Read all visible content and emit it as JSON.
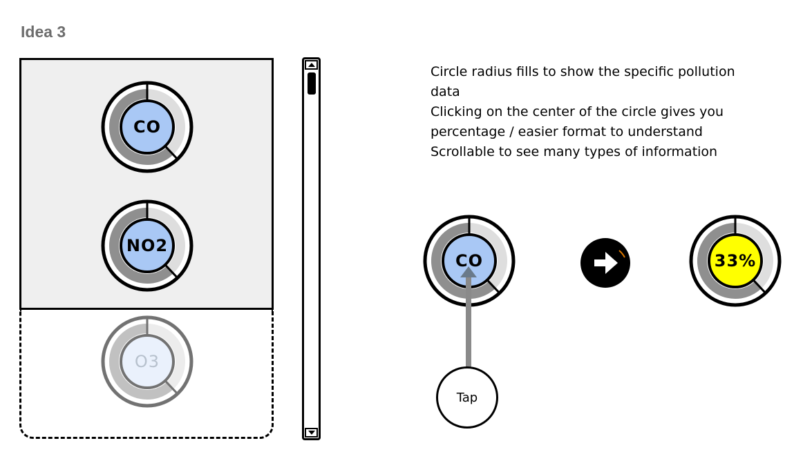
{
  "title": "Idea 3",
  "panel": {
    "gauges": [
      {
        "label": "CO",
        "fill_fraction": 0.62
      },
      {
        "label": "NO2",
        "fill_fraction": 0.62
      },
      {
        "label": "O3",
        "fill_fraction": 0.62
      }
    ]
  },
  "notes": {
    "line1": "Circle radius fills to show the specific pollution",
    "line2": "data",
    "line3": "Clicking on the center of the circle gives you",
    "line4": "percentage / easier format to understand",
    "line5": "Scrollable to see many types of information"
  },
  "demo": {
    "before_label": "CO",
    "after_label": "33%",
    "tap_label": "Tap",
    "before_fill_fraction": 0.62,
    "after_fill_fraction": 0.62
  },
  "colors": {
    "center_blue": "#a9c8f5",
    "center_faded": "#d9e7fb",
    "center_yellow": "#ffff00",
    "ring_dark": "#8f8f8f",
    "ring_light": "#dedede",
    "panel_bg": "#efefef"
  }
}
